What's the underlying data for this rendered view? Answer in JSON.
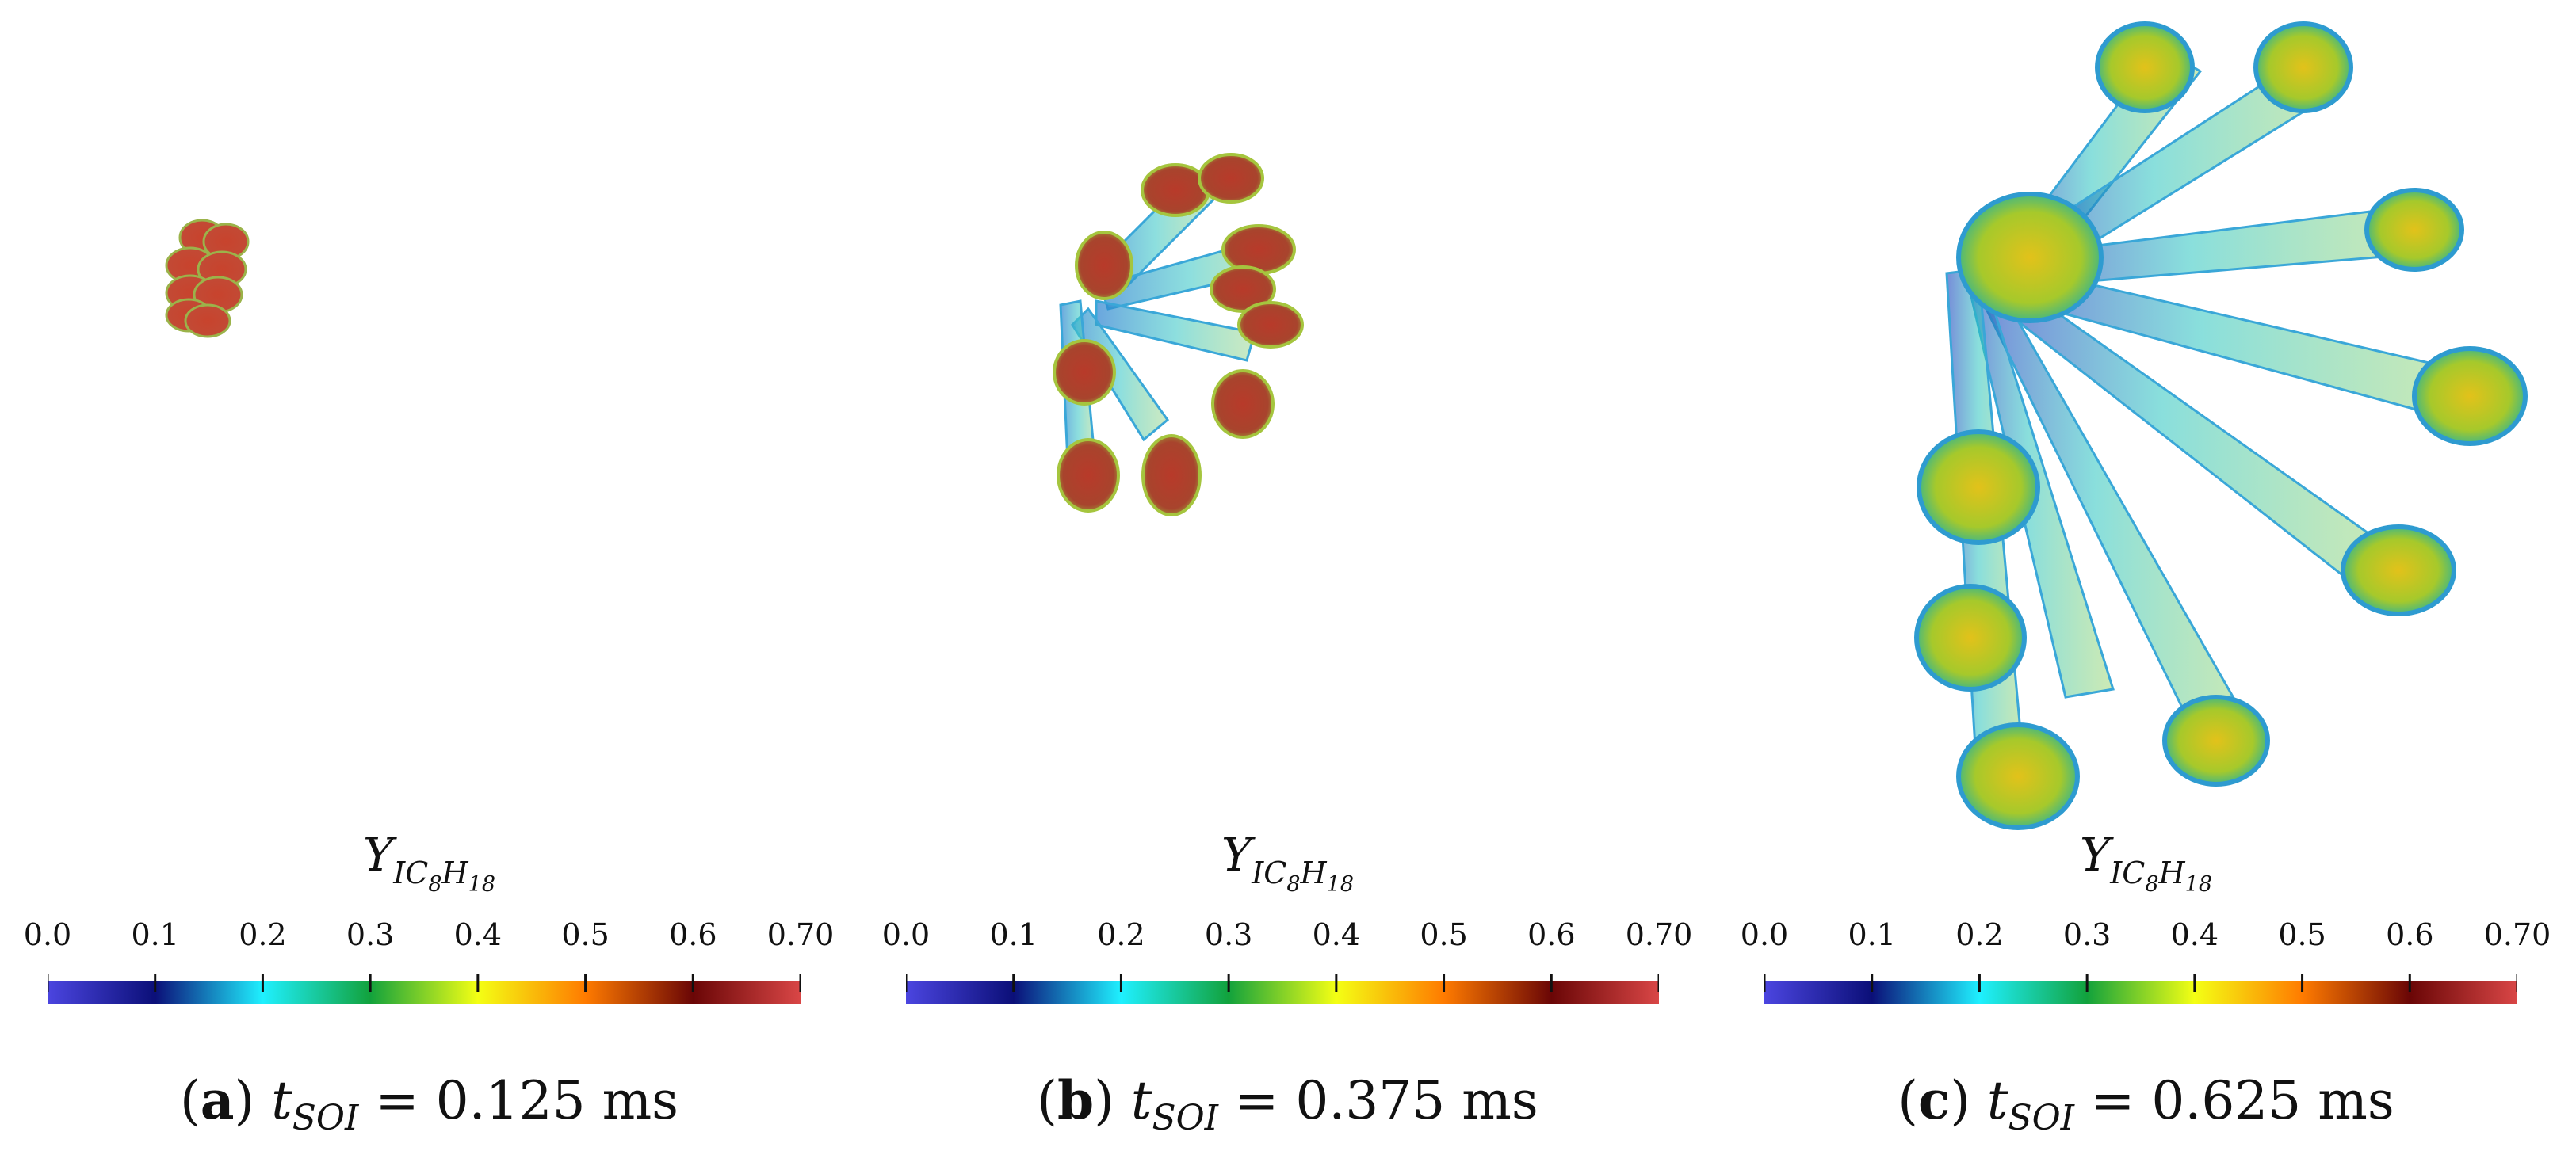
{
  "figure": {
    "colorbar": {
      "variable": "Y",
      "subscript_main": "IC",
      "subscript_8": "8",
      "subscript_H": "H",
      "subscript_18": "18",
      "ticks": [
        "0.0",
        "0.1",
        "0.2",
        "0.3",
        "0.4",
        "0.5",
        "0.6",
        "0.70"
      ],
      "tick_values": [
        0.0,
        0.1,
        0.2,
        0.3,
        0.4,
        0.5,
        0.6,
        0.7
      ],
      "range": [
        0.0,
        0.7
      ],
      "colormap_stops": [
        {
          "value": 0.0,
          "color": "#4b45e0"
        },
        {
          "value": 0.1,
          "color": "#0b0f78"
        },
        {
          "value": 0.2,
          "color": "#1ff0ff"
        },
        {
          "value": 0.3,
          "color": "#12a23c"
        },
        {
          "value": 0.4,
          "color": "#f4ff14"
        },
        {
          "value": 0.5,
          "color": "#ff7b00"
        },
        {
          "value": 0.6,
          "color": "#6a0606"
        },
        {
          "value": 0.7,
          "color": "#d94646"
        }
      ]
    },
    "panels": [
      {
        "label": "(a)",
        "label_letter": "a",
        "time_symbol": "t",
        "time_sub": "SOI",
        "equals": "=",
        "time_value": "0.125 ms",
        "stage": "early"
      },
      {
        "label": "(b)",
        "label_letter": "b",
        "time_symbol": "t",
        "time_sub": "SOI",
        "equals": "=",
        "time_value": "0.375 ms",
        "stage": "mid"
      },
      {
        "label": "(c)",
        "label_letter": "c",
        "time_symbol": "t",
        "time_sub": "SOI",
        "equals": "=",
        "time_value": "0.625 ms",
        "stage": "late"
      }
    ]
  }
}
